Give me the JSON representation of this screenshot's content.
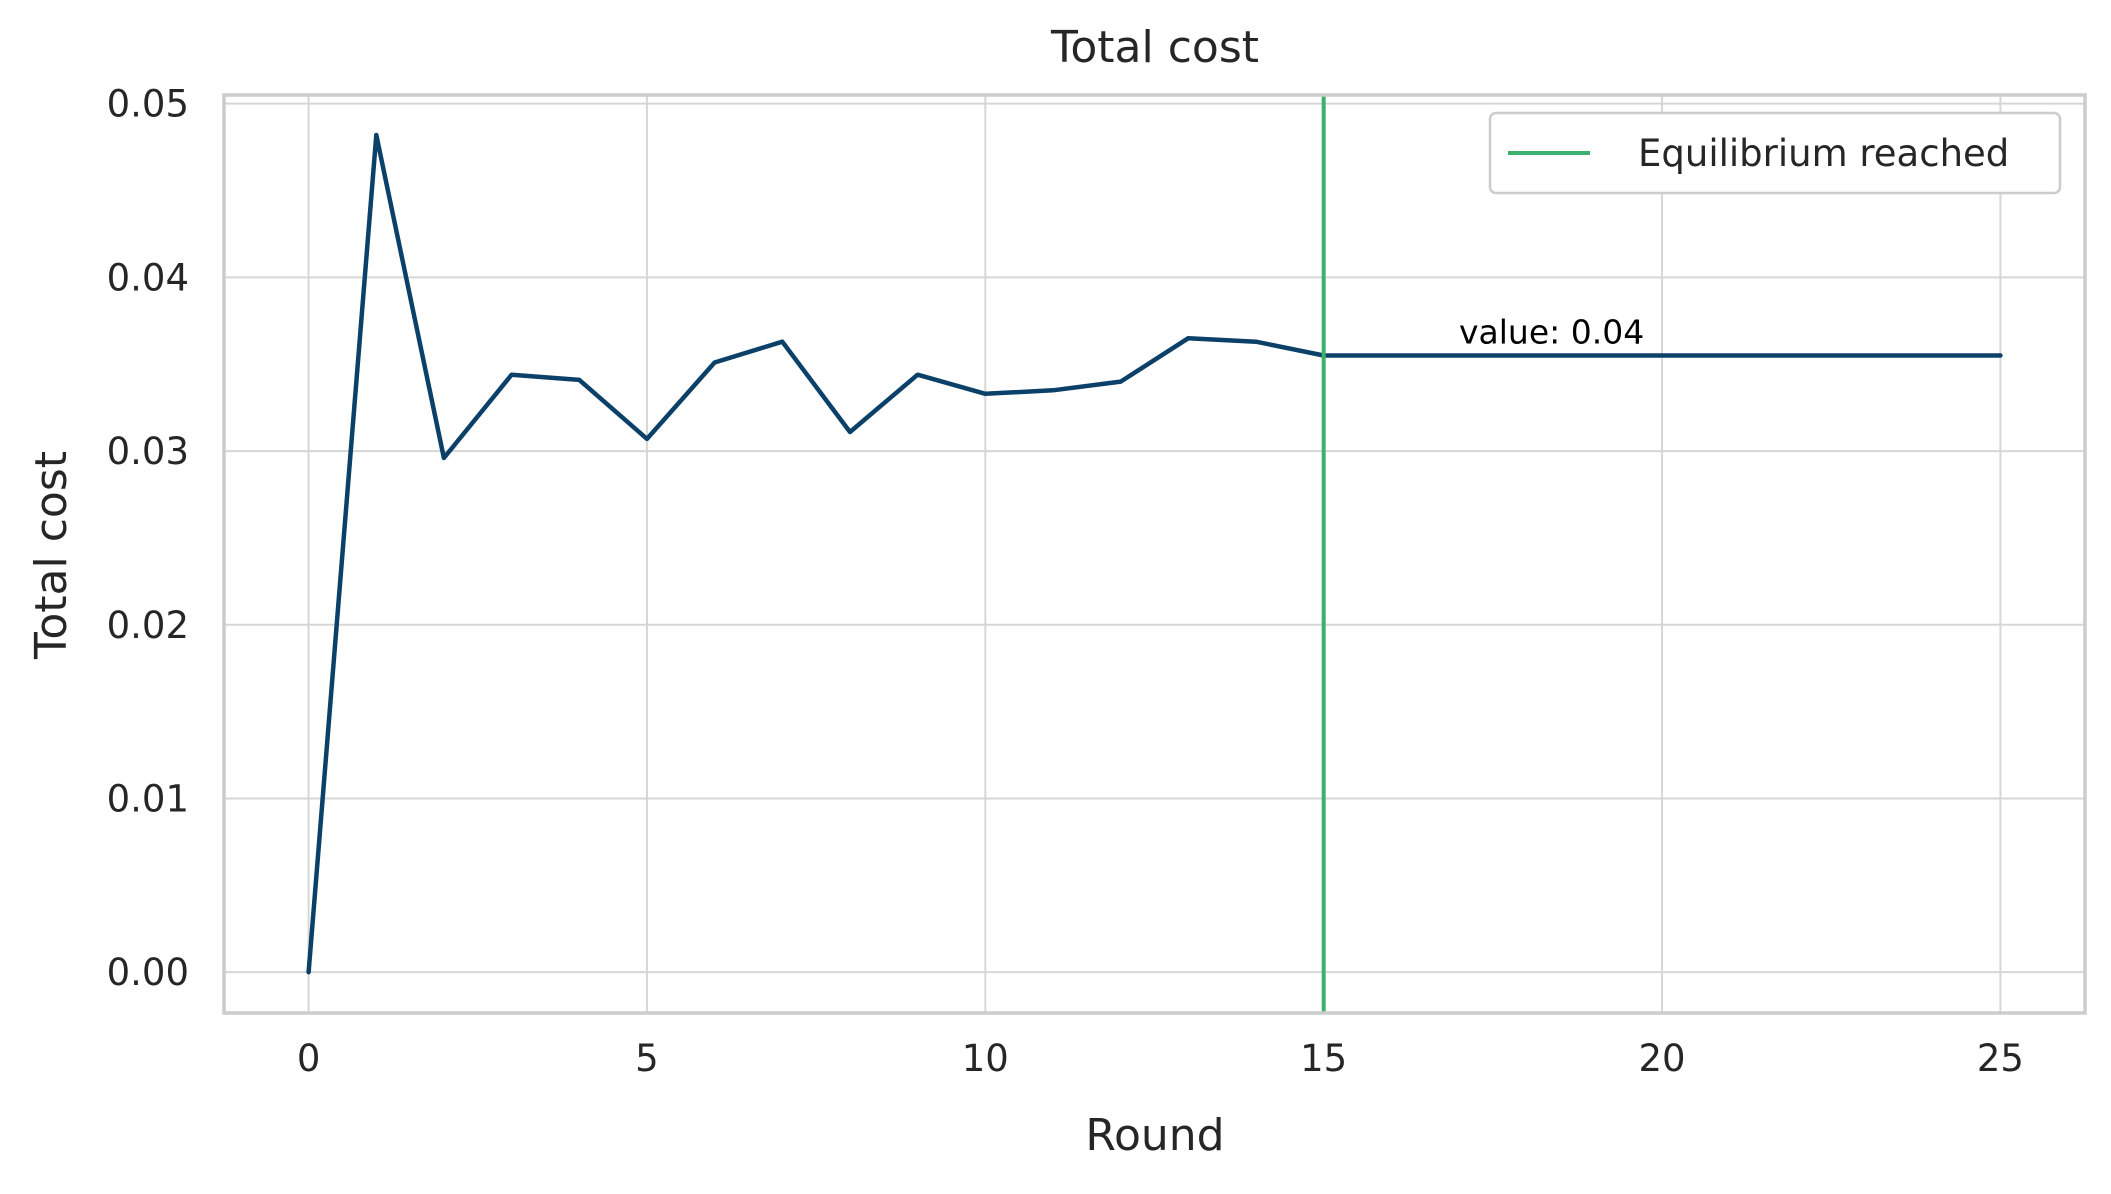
{
  "chart_data": {
    "type": "line",
    "title": "Total cost",
    "xlabel": "Round",
    "ylabel": "Total cost",
    "xlim": [
      -1.25,
      26.25
    ],
    "ylim": [
      -0.00235,
      0.0505
    ],
    "xticks": [
      0,
      5,
      10,
      15,
      20,
      25
    ],
    "xtick_labels": [
      "0",
      "5",
      "10",
      "15",
      "20",
      "25"
    ],
    "yticks": [
      0,
      0.01,
      0.02,
      0.03,
      0.04,
      0.05
    ],
    "ytick_labels": [
      "0.00",
      "0.01",
      "0.02",
      "0.03",
      "0.04",
      "0.05"
    ],
    "grid": true,
    "legend_position": "top-right",
    "series": [
      {
        "x": [
          0,
          1,
          2,
          3,
          4,
          5,
          6,
          7,
          8,
          9,
          10,
          11,
          12,
          13,
          14,
          15,
          16,
          17,
          18,
          19,
          20,
          21,
          22,
          23,
          24,
          25
        ],
        "values": [
          0.0,
          0.0482,
          0.0296,
          0.0344,
          0.0341,
          0.0307,
          0.0351,
          0.0363,
          0.0311,
          0.0344,
          0.0333,
          0.0335,
          0.034,
          0.0365,
          0.0363,
          0.0355,
          0.0355,
          0.0355,
          0.0355,
          0.0355,
          0.0355,
          0.0355,
          0.0355,
          0.0355,
          0.0355,
          0.0355
        ],
        "color": "#0b4168"
      }
    ],
    "vlines": [
      {
        "name": "Equilibrium reached",
        "x": 15,
        "color": "#3cb06c"
      }
    ],
    "annotations": [
      {
        "text": "value: 0.04",
        "x": 17,
        "y": 0.0362
      }
    ]
  }
}
